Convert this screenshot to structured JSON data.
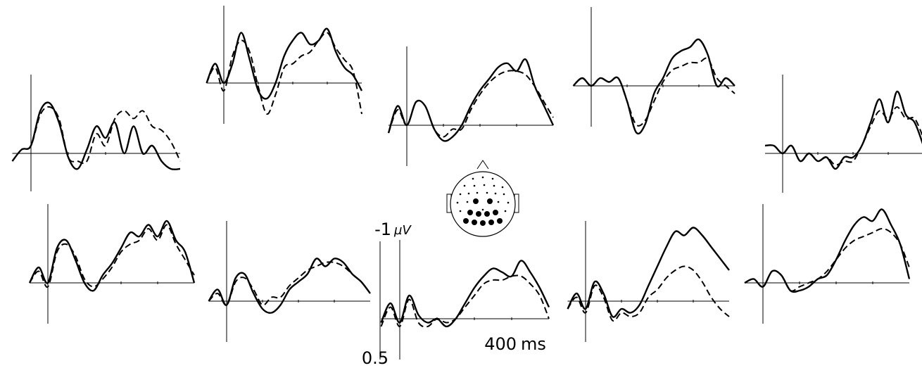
{
  "colors": {
    "line": "#000000",
    "background": "#ffffff"
  },
  "scale_labels": {
    "top": "-1",
    "unit": "µV",
    "bottom": "0.5",
    "time": "400",
    "time_unit": "ms"
  },
  "chart_data": {
    "type": "line",
    "x_unit": "ms",
    "y_unit": "µV",
    "xlim": [
      -100,
      800
    ],
    "ylim": [
      0.5,
      -1.0
    ],
    "y_axis_inverted": true,
    "series_styles": [
      "solid",
      "dashed"
    ],
    "x": [
      -100,
      -50,
      0,
      50,
      100,
      150,
      200,
      250,
      300,
      350,
      400,
      450,
      500,
      550,
      600,
      650,
      700,
      750,
      800
    ],
    "panels": [
      {
        "series": [
          {
            "values": [
              0.1,
              -0.05,
              -0.1,
              -0.55,
              -0.65,
              -0.4,
              0.05,
              0.2,
              -0.05,
              -0.35,
              -0.2,
              -0.4,
              0.0,
              -0.35,
              0.0,
              -0.1,
              0.1,
              0.2,
              0.2
            ]
          },
          {
            "values": [
              0.1,
              -0.05,
              -0.1,
              -0.5,
              -0.6,
              -0.45,
              0.05,
              0.1,
              0.1,
              -0.25,
              -0.1,
              -0.45,
              -0.55,
              -0.45,
              -0.55,
              -0.35,
              -0.3,
              -0.15,
              0.1
            ]
          }
        ]
      },
      {
        "series": [
          {
            "values": [
              0.0,
              -0.25,
              0.0,
              -0.25,
              -0.65,
              -0.3,
              0.1,
              0.2,
              0.0,
              -0.35,
              -0.55,
              -0.65,
              -0.5,
              -0.55,
              -0.7,
              -0.4,
              -0.2,
              -0.1,
              0.1
            ]
          },
          {
            "values": [
              0.0,
              -0.2,
              0.1,
              -0.35,
              -0.55,
              -0.4,
              0.05,
              0.4,
              0.15,
              -0.2,
              -0.25,
              -0.35,
              -0.4,
              -0.55,
              -0.65,
              -0.45,
              -0.3,
              -0.15,
              0.4
            ]
          }
        ]
      },
      {
        "series": [
          {
            "values": [
              0.1,
              -0.25,
              0.0,
              -0.3,
              -0.25,
              0.05,
              0.2,
              0.15,
              0.0,
              -0.25,
              -0.45,
              -0.6,
              -0.75,
              -0.8,
              -0.7,
              -0.85,
              -0.5,
              -0.25,
              0.0
            ]
          },
          {
            "values": [
              0.1,
              -0.2,
              0.0,
              -0.3,
              -0.25,
              0.05,
              0.15,
              0.05,
              0.05,
              -0.2,
              -0.4,
              -0.55,
              -0.65,
              -0.7,
              -0.7,
              -0.65,
              -0.5,
              -0.3,
              -0.1
            ]
          }
        ]
      },
      {
        "series": [
          {
            "values": [
              0.0,
              -0.1,
              0.0,
              -0.1,
              -0.05,
              -0.1,
              0.2,
              0.6,
              0.5,
              0.1,
              -0.1,
              -0.35,
              -0.45,
              -0.5,
              -0.6,
              -0.4,
              0.0,
              -0.1,
              0.0
            ]
          },
          {
            "values": [
              0.0,
              -0.1,
              0.0,
              -0.1,
              -0.05,
              -0.1,
              0.2,
              0.5,
              0.45,
              0.2,
              -0.05,
              -0.2,
              -0.25,
              -0.3,
              -0.3,
              -0.35,
              -0.1,
              0.0,
              0.1
            ]
          }
        ]
      },
      {
        "series": [
          {
            "values": [
              -0.1,
              -0.1,
              0.0,
              -0.1,
              0.1,
              0.0,
              0.1,
              0.05,
              0.2,
              0.05,
              0.05,
              -0.1,
              -0.4,
              -0.7,
              -0.4,
              -0.8,
              -0.5,
              -0.4,
              -0.1
            ]
          },
          {
            "values": [
              -0.1,
              -0.1,
              0.0,
              -0.1,
              0.1,
              0.0,
              0.1,
              0.05,
              0.15,
              0.1,
              0.1,
              -0.1,
              -0.35,
              -0.55,
              -0.45,
              -0.6,
              -0.45,
              -0.45,
              -0.2
            ]
          }
        ]
      },
      {
        "series": [
          {
            "values": [
              0.0,
              -0.2,
              0.0,
              -0.45,
              -0.55,
              -0.3,
              0.0,
              0.1,
              -0.1,
              -0.25,
              -0.45,
              -0.65,
              -0.6,
              -0.75,
              -0.6,
              -0.8,
              -0.55,
              -0.4,
              0.0
            ]
          },
          {
            "values": [
              0.0,
              -0.15,
              0.05,
              -0.4,
              -0.5,
              -0.35,
              -0.05,
              0.05,
              -0.05,
              -0.2,
              -0.4,
              -0.5,
              -0.55,
              -0.7,
              -0.55,
              -0.75,
              -0.5,
              -0.3,
              -0.1
            ]
          }
        ]
      },
      {
        "series": [
          {
            "values": [
              0.0,
              -0.15,
              0.05,
              -0.3,
              -0.35,
              -0.1,
              0.1,
              0.15,
              0.05,
              -0.15,
              -0.25,
              -0.35,
              -0.55,
              -0.45,
              -0.55,
              -0.5,
              -0.35,
              -0.25,
              -0.1
            ]
          },
          {
            "values": [
              0.0,
              -0.1,
              0.05,
              -0.25,
              -0.3,
              -0.15,
              0.05,
              -0.05,
              -0.05,
              -0.2,
              -0.3,
              -0.4,
              -0.45,
              -0.5,
              -0.5,
              -0.45,
              -0.35,
              -0.25,
              -0.1
            ]
          }
        ]
      },
      {
        "series": [
          {
            "values": [
              0.05,
              -0.2,
              0.05,
              -0.3,
              -0.05,
              0.05,
              0.0,
              0.1,
              0.0,
              -0.2,
              -0.4,
              -0.55,
              -0.65,
              -0.6,
              -0.55,
              -0.75,
              -0.6,
              -0.4,
              -0.15
            ]
          },
          {
            "values": [
              0.1,
              -0.15,
              0.1,
              -0.25,
              0.05,
              0.1,
              0.0,
              0.05,
              0.0,
              -0.15,
              -0.3,
              -0.45,
              -0.5,
              -0.5,
              -0.55,
              -0.55,
              -0.45,
              -0.3,
              0.0
            ]
          }
        ]
      },
      {
        "series": [
          {
            "values": [
              0.1,
              -0.1,
              0.1,
              -0.25,
              -0.1,
              0.2,
              0.1,
              0.15,
              0.05,
              -0.2,
              -0.45,
              -0.7,
              -0.9,
              -0.85,
              -0.95,
              -0.85,
              -0.7,
              -0.55,
              -0.4
            ]
          },
          {
            "values": [
              0.1,
              -0.05,
              0.15,
              -0.2,
              -0.05,
              0.25,
              0.15,
              0.2,
              0.15,
              -0.05,
              -0.15,
              -0.3,
              -0.4,
              -0.45,
              -0.4,
              -0.25,
              -0.05,
              0.1,
              0.2
            ]
          }
        ]
      },
      {
        "series": [
          {
            "values": [
              0.0,
              -0.05,
              0.05,
              -0.15,
              -0.1,
              0.1,
              0.1,
              0.05,
              -0.05,
              -0.1,
              -0.3,
              -0.55,
              -0.75,
              -0.85,
              -0.8,
              -0.95,
              -0.75,
              -0.5,
              -0.05
            ]
          },
          {
            "values": [
              0.0,
              -0.05,
              0.05,
              -0.15,
              -0.1,
              0.1,
              0.05,
              0.0,
              -0.05,
              -0.15,
              -0.3,
              -0.45,
              -0.55,
              -0.6,
              -0.65,
              -0.7,
              -0.65,
              -0.5,
              -0.2
            ]
          }
        ]
      }
    ]
  }
}
